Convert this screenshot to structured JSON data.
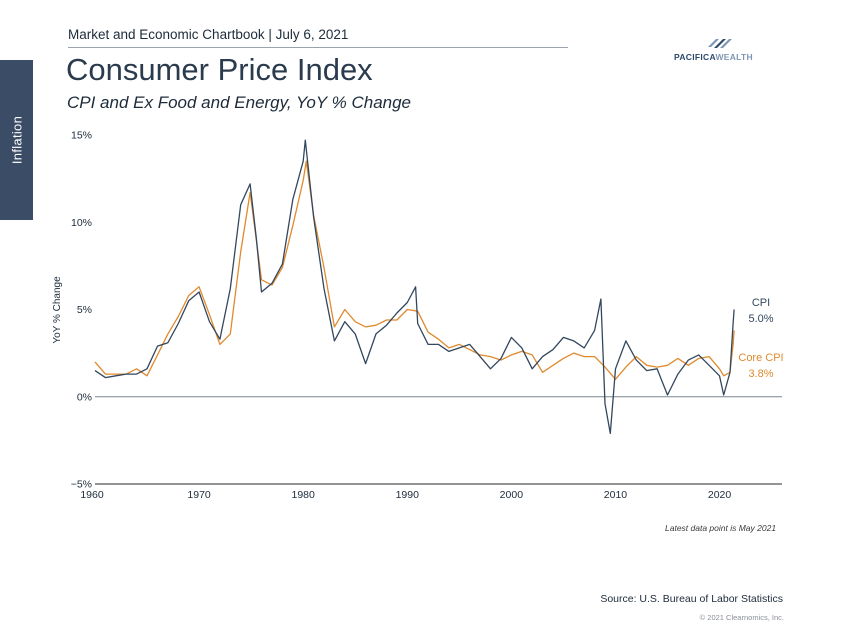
{
  "header": {
    "chartbook": "Market and Economic Chartbook | July 6, 2021"
  },
  "logo": {
    "name_bold": "PACIFICA",
    "name_light": "WEALTH"
  },
  "side_tab": {
    "label": "Inflation"
  },
  "title": "Consumer Price Index",
  "subtitle": "CPI and Ex Food and Energy, YoY % Change",
  "note": "Latest data point is May 2021",
  "source": "Source: U.S. Bureau of Labor Statistics",
  "copyright": "© 2021 Clearnomics, Inc.",
  "colors": {
    "cpi": "#33475e",
    "core": "#e08a2e",
    "zero_line": "#7a8590",
    "axis": "#555555",
    "side_tab": "#3b4d66"
  },
  "chart_data": {
    "type": "line",
    "ylabel": "YoY % Change",
    "xlabel": "",
    "xlim": [
      1960,
      2026
    ],
    "ylim": [
      -5,
      15
    ],
    "x_ticks": [
      1960,
      1970,
      1980,
      1990,
      2000,
      2010,
      2020
    ],
    "y_ticks": [
      -5,
      0,
      5,
      10,
      15
    ],
    "y_tick_labels": [
      "−5%",
      "0%",
      "5%",
      "10%",
      "15%"
    ],
    "grid": false,
    "series": [
      {
        "name": "CPI",
        "end_label": "5.0%",
        "color": "#33475e",
        "points": [
          [
            1960,
            1.5
          ],
          [
            1961,
            1.1
          ],
          [
            1962,
            1.2
          ],
          [
            1963,
            1.3
          ],
          [
            1964,
            1.3
          ],
          [
            1965,
            1.6
          ],
          [
            1966,
            2.9
          ],
          [
            1967,
            3.1
          ],
          [
            1968,
            4.2
          ],
          [
            1969,
            5.5
          ],
          [
            1970,
            6.0
          ],
          [
            1971,
            4.3
          ],
          [
            1972,
            3.3
          ],
          [
            1973,
            6.2
          ],
          [
            1974,
            11.0
          ],
          [
            1974.9,
            12.2
          ],
          [
            1975.5,
            9.1
          ],
          [
            1976,
            6.0
          ],
          [
            1977,
            6.5
          ],
          [
            1978,
            7.6
          ],
          [
            1979,
            11.3
          ],
          [
            1980,
            13.5
          ],
          [
            1980.2,
            14.7
          ],
          [
            1981,
            10.3
          ],
          [
            1982,
            6.2
          ],
          [
            1983,
            3.2
          ],
          [
            1984,
            4.3
          ],
          [
            1985,
            3.6
          ],
          [
            1986,
            1.9
          ],
          [
            1987,
            3.6
          ],
          [
            1988,
            4.1
          ],
          [
            1989,
            4.8
          ],
          [
            1990,
            5.4
          ],
          [
            1990.8,
            6.3
          ],
          [
            1991,
            4.2
          ],
          [
            1992,
            3.0
          ],
          [
            1993,
            3.0
          ],
          [
            1994,
            2.6
          ],
          [
            1995,
            2.8
          ],
          [
            1996,
            3.0
          ],
          [
            1997,
            2.3
          ],
          [
            1998,
            1.6
          ],
          [
            1999,
            2.2
          ],
          [
            2000,
            3.4
          ],
          [
            2001,
            2.8
          ],
          [
            2002,
            1.6
          ],
          [
            2003,
            2.3
          ],
          [
            2004,
            2.7
          ],
          [
            2005,
            3.4
          ],
          [
            2006,
            3.2
          ],
          [
            2007,
            2.8
          ],
          [
            2008,
            3.8
          ],
          [
            2008.6,
            5.6
          ],
          [
            2009,
            -0.4
          ],
          [
            2009.5,
            -2.1
          ],
          [
            2010,
            1.6
          ],
          [
            2011,
            3.2
          ],
          [
            2012,
            2.1
          ],
          [
            2013,
            1.5
          ],
          [
            2014,
            1.6
          ],
          [
            2015,
            0.1
          ],
          [
            2016,
            1.3
          ],
          [
            2017,
            2.1
          ],
          [
            2018,
            2.4
          ],
          [
            2019,
            1.8
          ],
          [
            2020,
            1.2
          ],
          [
            2020.4,
            0.1
          ],
          [
            2021,
            1.4
          ],
          [
            2021.3,
            4.2
          ],
          [
            2021.4,
            5.0
          ]
        ]
      },
      {
        "name": "Core CPI",
        "end_label": "3.8%",
        "color": "#e08a2e",
        "points": [
          [
            1960,
            2.0
          ],
          [
            1961,
            1.3
          ],
          [
            1962,
            1.3
          ],
          [
            1963,
            1.3
          ],
          [
            1964,
            1.6
          ],
          [
            1965,
            1.2
          ],
          [
            1966,
            2.4
          ],
          [
            1967,
            3.6
          ],
          [
            1968,
            4.6
          ],
          [
            1969,
            5.8
          ],
          [
            1970,
            6.3
          ],
          [
            1971,
            4.7
          ],
          [
            1972,
            3.0
          ],
          [
            1973,
            3.6
          ],
          [
            1974,
            8.3
          ],
          [
            1974.9,
            11.7
          ],
          [
            1975.5,
            9.0
          ],
          [
            1976,
            6.7
          ],
          [
            1977,
            6.4
          ],
          [
            1978,
            7.4
          ],
          [
            1979,
            9.8
          ],
          [
            1980,
            12.4
          ],
          [
            1980.3,
            13.5
          ],
          [
            1981,
            10.4
          ],
          [
            1982,
            7.4
          ],
          [
            1983,
            4.0
          ],
          [
            1984,
            5.0
          ],
          [
            1985,
            4.3
          ],
          [
            1986,
            4.0
          ],
          [
            1987,
            4.1
          ],
          [
            1988,
            4.4
          ],
          [
            1989,
            4.4
          ],
          [
            1990,
            5.0
          ],
          [
            1991,
            4.9
          ],
          [
            1992,
            3.7
          ],
          [
            1993,
            3.3
          ],
          [
            1994,
            2.8
          ],
          [
            1995,
            3.0
          ],
          [
            1996,
            2.7
          ],
          [
            1997,
            2.4
          ],
          [
            1998,
            2.3
          ],
          [
            1999,
            2.1
          ],
          [
            2000,
            2.4
          ],
          [
            2001,
            2.6
          ],
          [
            2002,
            2.4
          ],
          [
            2003,
            1.4
          ],
          [
            2004,
            1.8
          ],
          [
            2005,
            2.2
          ],
          [
            2006,
            2.5
          ],
          [
            2007,
            2.3
          ],
          [
            2008,
            2.3
          ],
          [
            2009,
            1.7
          ],
          [
            2010,
            1.0
          ],
          [
            2011,
            1.7
          ],
          [
            2012,
            2.3
          ],
          [
            2013,
            1.8
          ],
          [
            2014,
            1.7
          ],
          [
            2015,
            1.8
          ],
          [
            2016,
            2.2
          ],
          [
            2017,
            1.8
          ],
          [
            2018,
            2.2
          ],
          [
            2019,
            2.3
          ],
          [
            2020,
            1.6
          ],
          [
            2020.4,
            1.2
          ],
          [
            2021,
            1.4
          ],
          [
            2021.3,
            3.0
          ],
          [
            2021.4,
            3.8
          ]
        ]
      }
    ]
  }
}
